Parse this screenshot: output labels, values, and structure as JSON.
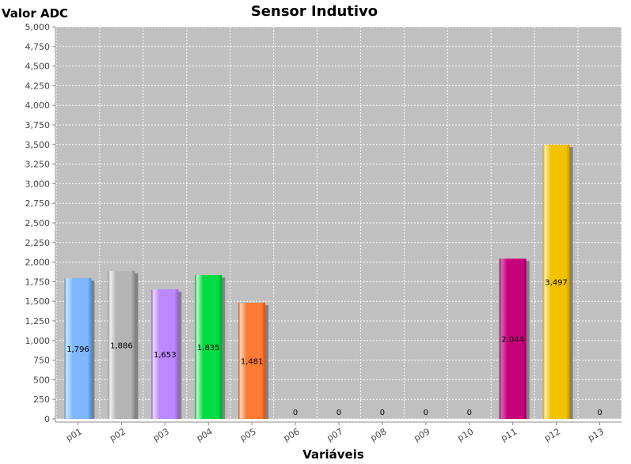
{
  "chart_data": {
    "type": "bar",
    "title": "Sensor Indutivo",
    "xlabel": "Variáveis",
    "ylabel": "Valor ADC",
    "ylim": [
      0,
      5000
    ],
    "ytick_step": 250,
    "grid": true,
    "categories": [
      "p01",
      "p02",
      "p03",
      "p04",
      "p05",
      "p06",
      "p07",
      "p08",
      "p09",
      "p10",
      "p11",
      "p12",
      "p13"
    ],
    "values": [
      1796,
      1886,
      1653,
      1835,
      1481,
      0,
      0,
      0,
      0,
      0,
      2044,
      3497,
      0
    ],
    "value_labels": [
      "1,796",
      "1,886",
      "1,653",
      "1,835",
      "1,481",
      "0",
      "0",
      "0",
      "0",
      "0",
      "2,044",
      "3,497",
      "0"
    ],
    "ytick_labels": [
      "0",
      "250",
      "500",
      "750",
      "1,000",
      "1,250",
      "1,500",
      "1,750",
      "2,000",
      "2,250",
      "2,500",
      "2,750",
      "3,000",
      "3,250",
      "3,500",
      "3,750",
      "4,000",
      "4,250",
      "4,500",
      "4,750",
      "5,000"
    ],
    "bar_colors": [
      {
        "light": "#cfe6ff",
        "base": "#7fb8ff",
        "dark": "#4f8fdf"
      },
      {
        "light": "#f0f0f0",
        "base": "#b4b4b4",
        "dark": "#8a8a8a"
      },
      {
        "light": "#ead6ff",
        "base": "#bb88ff",
        "dark": "#9060d8"
      },
      {
        "light": "#b8ffc8",
        "base": "#00dd44",
        "dark": "#00aa30"
      },
      {
        "light": "#ffd6b8",
        "base": "#ff7a33",
        "dark": "#d05518"
      },
      {
        "light": "#ffffff",
        "base": "#cccccc",
        "dark": "#999999"
      },
      {
        "light": "#ffffff",
        "base": "#cccccc",
        "dark": "#999999"
      },
      {
        "light": "#ffffff",
        "base": "#cccccc",
        "dark": "#999999"
      },
      {
        "light": "#ffffff",
        "base": "#cccccc",
        "dark": "#999999"
      },
      {
        "light": "#ffffff",
        "base": "#cccccc",
        "dark": "#999999"
      },
      {
        "light": "#e060b8",
        "base": "#c8007a",
        "dark": "#950060"
      },
      {
        "light": "#fff0a0",
        "base": "#f2c200",
        "dark": "#c89a00"
      },
      {
        "light": "#ffffff",
        "base": "#cccccc",
        "dark": "#999999"
      }
    ],
    "plot_background": "#c0c0c0",
    "gridline_color": "#ffffff"
  }
}
